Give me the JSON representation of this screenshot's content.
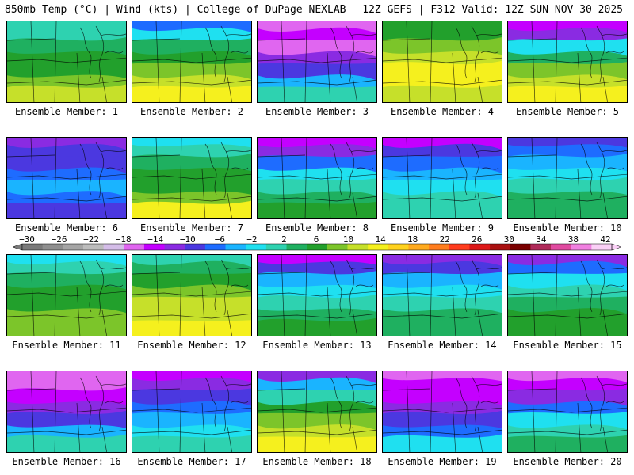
{
  "header": {
    "title_left": "850mb Temp (°C) | Wind (kts) | College of DuPage NEXLAB",
    "title_right": "12Z GEFS | F312 Valid: 12Z SUN NOV 30 2025"
  },
  "colorbar": {
    "tick_labels": [
      "−30",
      "−26",
      "−22",
      "−18",
      "−14",
      "−10",
      "−6",
      "−2",
      "2",
      "6",
      "10",
      "14",
      "18",
      "22",
      "26",
      "30",
      "34",
      "38",
      "42"
    ],
    "colors": [
      "#7a7a7a",
      "#8f8f8f",
      "#a5a5a5",
      "#bcbcbc",
      "#d4bde8",
      "#e066f0",
      "#c400ff",
      "#8a2be2",
      "#4b38e0",
      "#1e6cff",
      "#1ab4ff",
      "#1fe0f0",
      "#2ed2b0",
      "#1fb060",
      "#22a02c",
      "#7cc52a",
      "#c6e02a",
      "#f5f01e",
      "#ffd21e",
      "#ffaa1e",
      "#ff7d1e",
      "#ff3c1e",
      "#dd1818",
      "#aa1010",
      "#7a0000",
      "#b02a5a",
      "#e04aa0",
      "#f080e0",
      "#fad0f6"
    ]
  },
  "panels": [
    {
      "label": "Ensemble Member: 1"
    },
    {
      "label": "Ensemble Member: 2"
    },
    {
      "label": "Ensemble Member: 3"
    },
    {
      "label": "Ensemble Member: 4"
    },
    {
      "label": "Ensemble Member: 5"
    },
    {
      "label": "Ensemble Member: 6"
    },
    {
      "label": "Ensemble Member: 7"
    },
    {
      "label": "Ensemble Member: 8"
    },
    {
      "label": "Ensemble Member: 9"
    },
    {
      "label": "Ensemble Member: 10"
    },
    {
      "label": "Ensemble Member: 11"
    },
    {
      "label": "Ensemble Member: 12"
    },
    {
      "label": "Ensemble Member: 13"
    },
    {
      "label": "Ensemble Member: 14"
    },
    {
      "label": "Ensemble Member: 15"
    },
    {
      "label": "Ensemble Member: 16"
    },
    {
      "label": "Ensemble Member: 17"
    },
    {
      "label": "Ensemble Member: 18"
    },
    {
      "label": "Ensemble Member: 19"
    },
    {
      "label": "Ensemble Member: 20"
    }
  ]
}
